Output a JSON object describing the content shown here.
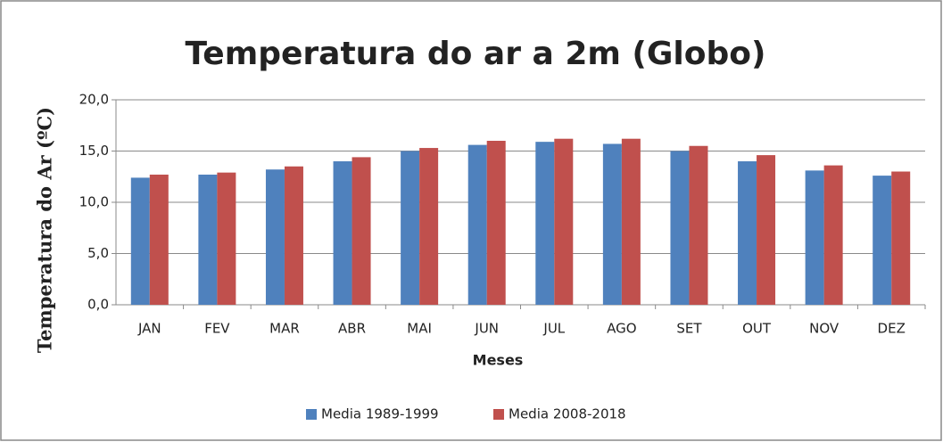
{
  "chart_data": {
    "type": "bar",
    "title": "Temperatura do ar a 2m (Globo)",
    "y_label": "Temperatura do Ar (ºC)",
    "x_label": "Meses",
    "categories": [
      "JAN",
      "FEV",
      "MAR",
      "ABR",
      "MAI",
      "JUN",
      "JUL",
      "AGO",
      "SET",
      "OUT",
      "NOV",
      "DEZ"
    ],
    "series": [
      {
        "name": "Media 1989-1999",
        "color": "#4f81bd",
        "values": [
          12.4,
          12.7,
          13.2,
          14.0,
          15.0,
          15.6,
          15.9,
          15.7,
          15.0,
          14.0,
          13.1,
          12.6
        ]
      },
      {
        "name": "Media 2008-2018",
        "color": "#c0504d",
        "values": [
          12.7,
          12.9,
          13.5,
          14.4,
          15.3,
          16.0,
          16.2,
          16.2,
          15.5,
          14.6,
          13.6,
          13.0
        ]
      }
    ],
    "ylim": [
      0,
      20
    ],
    "yticks": [
      {
        "value": 0,
        "label": "0,0"
      },
      {
        "value": 5,
        "label": "5,0"
      },
      {
        "value": 10,
        "label": "10,0"
      },
      {
        "value": 15,
        "label": "15,0"
      },
      {
        "value": 20,
        "label": "20,0"
      }
    ],
    "grid": true,
    "legend": "bottom"
  }
}
